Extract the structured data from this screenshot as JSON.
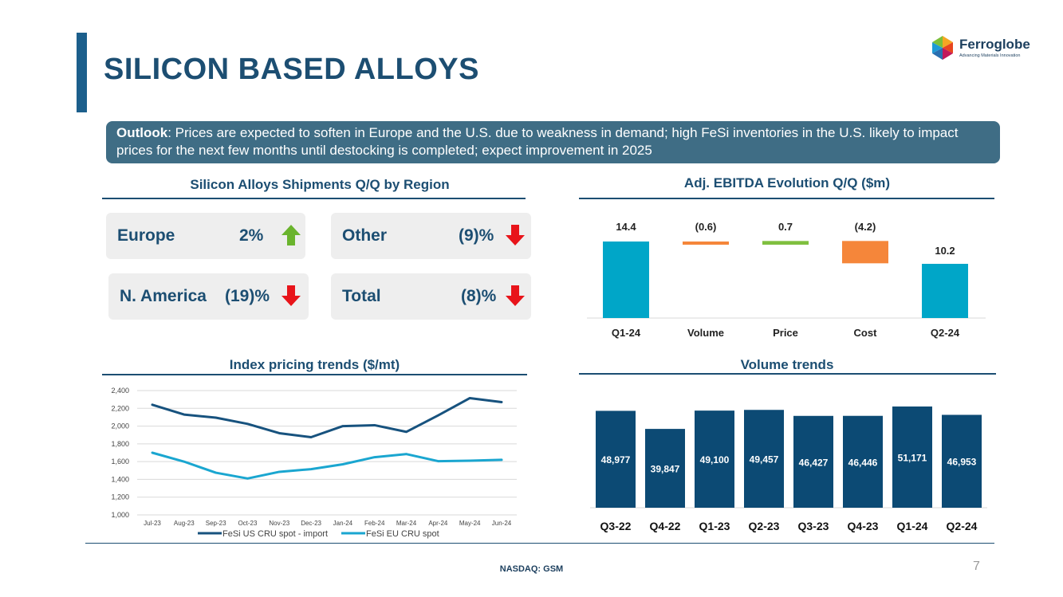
{
  "title": "SILICON BASED ALLOYS",
  "logo": {
    "name": "Ferroglobe",
    "tagline": "Advancing Materials Innovation"
  },
  "outlook": {
    "label": "Outlook",
    "text": ": Prices are expected to soften in Europe and the U.S. due to weakness in demand; high FeSi inventories in the U.S. likely to impact prices for the next few months until destocking is completed; expect improvement in 2025"
  },
  "shipments": {
    "title": "Silicon Alloys Shipments Q/Q by Region",
    "regions": [
      {
        "label": "Europe",
        "value": "2%",
        "direction": "up"
      },
      {
        "label": "Other",
        "value": "(9)%",
        "direction": "down"
      },
      {
        "label": "N. America",
        "value": "(19)%",
        "direction": "down"
      },
      {
        "label": "Total",
        "value": "(8)%",
        "direction": "down"
      }
    ]
  },
  "colors": {
    "teal": "#00a6c8",
    "orange": "#f5863a",
    "green": "#7fbf3f",
    "navy": "#1c4e72",
    "bar_navy": "#0c4a74",
    "up_arrow": "#6ab42d",
    "down_arrow": "#e8141a"
  },
  "chart_data": [
    {
      "type": "waterfall",
      "title": "Adj. EBITDA Evolution Q/Q ($m)",
      "categories": [
        "Q1-24",
        "Volume",
        "Price",
        "Cost",
        "Q2-24"
      ],
      "values": [
        14.4,
        -0.6,
        0.7,
        -4.2,
        10.2
      ],
      "labels": [
        "14.4",
        "(0.6)",
        "0.7",
        "(4.2)",
        "10.2"
      ],
      "kinds": [
        "total",
        "delta",
        "delta",
        "delta",
        "total"
      ]
    },
    {
      "type": "line",
      "title": "Index pricing trends ($/mt)",
      "categories": [
        "Jul-23",
        "Aug-23",
        "Sep-23",
        "Oct-23",
        "Nov-23",
        "Dec-23",
        "Jan-24",
        "Feb-24",
        "Mar-24",
        "Apr-24",
        "May-24",
        "Jun-24"
      ],
      "series": [
        {
          "name": "FeSi US CRU spot - import",
          "color": "#17527e",
          "values": [
            2240,
            2130,
            2095,
            2025,
            1920,
            1875,
            2000,
            2010,
            1935,
            2120,
            2315,
            2270
          ]
        },
        {
          "name": "FeSi EU CRU spot",
          "color": "#1aa6d0",
          "values": [
            1700,
            1600,
            1475,
            1410,
            1485,
            1515,
            1570,
            1650,
            1685,
            1605,
            1610,
            1620
          ]
        }
      ],
      "ylim": [
        1000,
        2400
      ],
      "yticks": [
        "1,000",
        "1,200",
        "1,400",
        "1,600",
        "1,800",
        "2,000",
        "2,200",
        "2,400"
      ],
      "ytick_values": [
        1000,
        1200,
        1400,
        1600,
        1800,
        2000,
        2200,
        2400
      ]
    },
    {
      "type": "bar",
      "title": "Volume trends",
      "categories": [
        "Q3-22",
        "Q4-22",
        "Q1-23",
        "Q2-23",
        "Q3-23",
        "Q4-23",
        "Q1-24",
        "Q2-24"
      ],
      "values": [
        48977,
        39847,
        49100,
        49457,
        46427,
        46446,
        51171,
        46953
      ],
      "labels": [
        "48,977",
        "39,847",
        "49,100",
        "49,457",
        "46,427",
        "46,446",
        "51,171",
        "46,953"
      ]
    }
  ],
  "footer": {
    "ticker": "NASDAQ: GSM",
    "page": "7"
  }
}
